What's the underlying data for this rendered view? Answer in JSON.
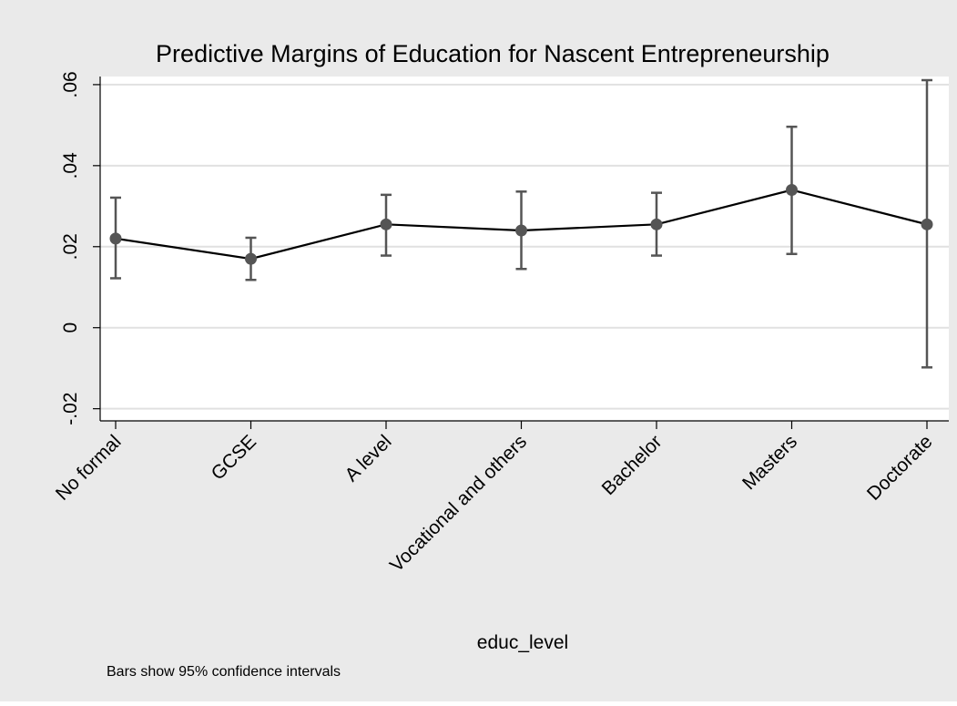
{
  "chart_data": {
    "type": "line",
    "title": "Predictive Margins of Education for Nascent Entrepreneurship",
    "xlabel": "educ_level",
    "ylabel": "",
    "note": "Bars show 95% confidence intervals",
    "categories": [
      "No formal",
      "GCSE",
      "A level",
      "Vocational and others",
      "Bachelor",
      "Masters",
      "Doctorate"
    ],
    "y_ticks": [
      -0.02,
      0,
      0.02,
      0.04,
      0.06
    ],
    "y_tick_labels": [
      "-.02",
      "0",
      ".02",
      ".04",
      ".06"
    ],
    "ylim": [
      -0.023,
      0.062
    ],
    "grid": true,
    "series": [
      {
        "values": [
          0.022,
          0.017,
          0.0255,
          0.024,
          0.0255,
          0.034,
          0.0255
        ],
        "ci_lower": [
          0.0122,
          0.0118,
          0.0178,
          0.0145,
          0.0178,
          0.0182,
          -0.0098
        ],
        "ci_upper": [
          0.0321,
          0.0222,
          0.0328,
          0.0336,
          0.0333,
          0.0496,
          0.0611
        ]
      }
    ],
    "colors": {
      "outer_background": "#eaeaea",
      "plot_background": "#ffffff",
      "gridline": "#e1e1e1",
      "line": "#000000",
      "marker": "#555555",
      "errorbar": "#555555",
      "axis": "#000000",
      "text": "#000000"
    }
  }
}
